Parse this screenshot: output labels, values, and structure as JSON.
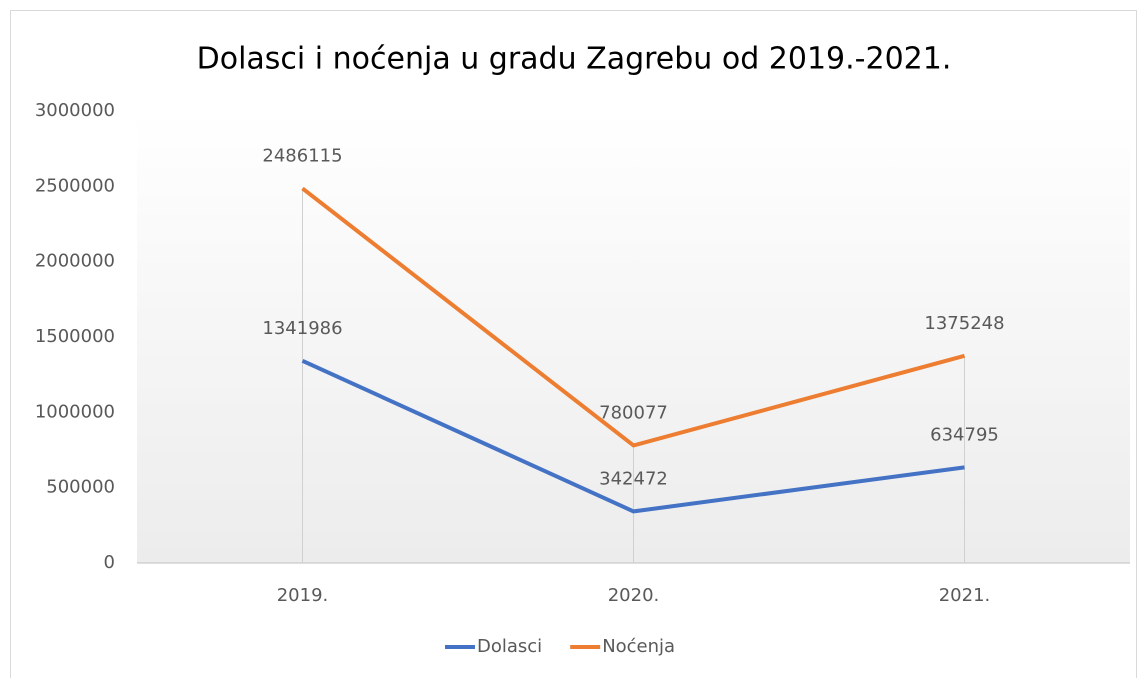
{
  "chart_data": {
    "type": "line",
    "title": "Dolasci i noćenja u gradu Zagrebu od 2019.-2021.",
    "categories": [
      "2019.",
      "2020.",
      "2021."
    ],
    "series": [
      {
        "name": "Dolasci",
        "color": "#4472c4",
        "values": [
          1341986,
          342472,
          634795
        ]
      },
      {
        "name": "Noćenja",
        "color": "#ed7d31",
        "values": [
          2486115,
          780077,
          1375248
        ]
      }
    ],
    "ylim": [
      0,
      3000000
    ],
    "yticks": [
      0,
      500000,
      1000000,
      1500000,
      2000000,
      2500000,
      3000000
    ],
    "grid": false,
    "legend": "bottom"
  }
}
